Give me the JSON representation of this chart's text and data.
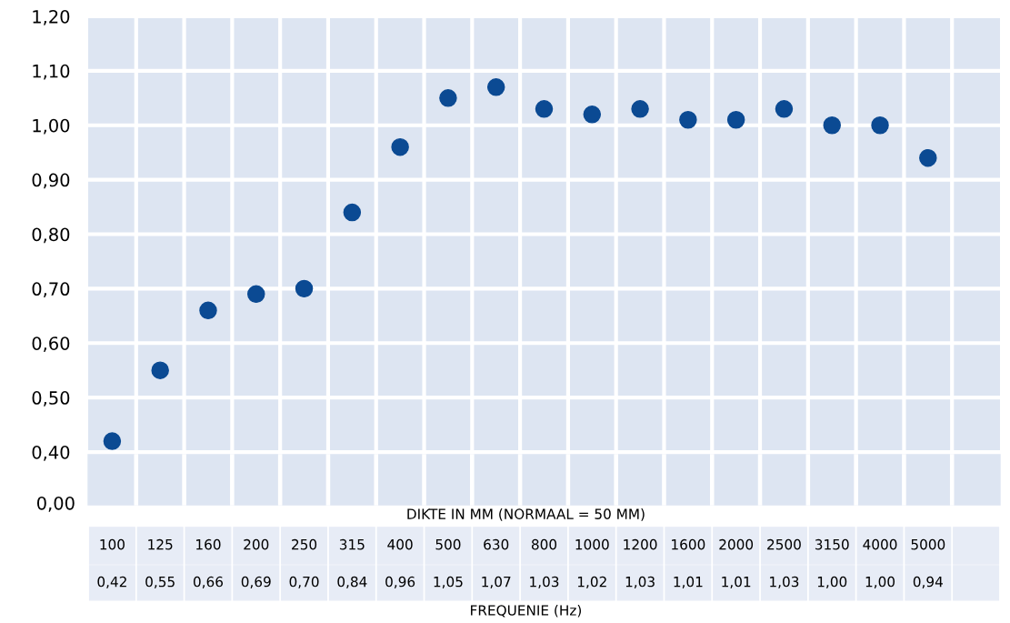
{
  "chart_data": {
    "type": "scatter",
    "xlabel": "FREQUENIE (Hz)",
    "annotations": [
      "DIKTE IN MM (NORMAAL = 50 MM)",
      "0,00"
    ],
    "categories": [
      "100",
      "125",
      "160",
      "200",
      "250",
      "315",
      "400",
      "500",
      "630",
      "800",
      "1000",
      "1200",
      "1600",
      "2000",
      "2500",
      "3150",
      "4000",
      "5000",
      null
    ],
    "values": [
      0.42,
      0.55,
      0.66,
      0.69,
      0.7,
      0.84,
      0.96,
      1.05,
      1.07,
      1.03,
      1.02,
      1.03,
      1.01,
      1.01,
      1.03,
      1.0,
      1.0,
      0.94,
      null
    ],
    "value_labels": [
      "0,42",
      "0,55",
      "0,66",
      "0,69",
      "0,70",
      "0,84",
      "0,96",
      "1,05",
      "1,07",
      "1,03",
      "1,02",
      "1,03",
      "1,01",
      "1,01",
      "1,03",
      "1,00",
      "1,00",
      "0,94",
      null
    ],
    "color": "#0b4a93",
    "marker": "circle",
    "grid": true,
    "tick_labels": "y",
    "ylim": [
      0.4,
      1.2
    ],
    "yticks": [
      {
        "value": 0.4,
        "label": "0,40"
      },
      {
        "value": 0.5,
        "label": "0,50"
      },
      {
        "value": 0.6,
        "label": "0,60"
      },
      {
        "value": 0.7,
        "label": "0,70"
      },
      {
        "value": 0.8,
        "label": "0,80"
      },
      {
        "value": 0.9,
        "label": "0,90"
      },
      {
        "value": 1.0,
        "label": "1,00"
      },
      {
        "value": 1.1,
        "label": "1,10"
      },
      {
        "value": 1.2,
        "label": "1,20"
      }
    ]
  }
}
